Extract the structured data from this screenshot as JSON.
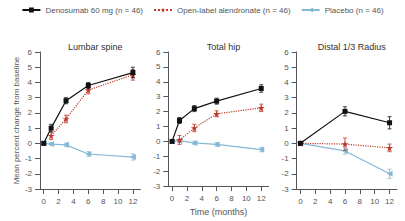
{
  "chart_data": [
    {
      "type": "line",
      "title": "Lumbar spine",
      "ylabel": "Mean percent change from baseline",
      "legend": "top",
      "xlim": [
        -0.5,
        13
      ],
      "xticks": [
        0,
        2,
        4,
        6,
        8,
        10,
        12
      ],
      "ylim": [
        -3,
        6
      ],
      "yticks": [
        -3,
        -2,
        -1,
        0,
        1,
        2,
        3,
        4,
        5,
        6
      ],
      "grid": false,
      "series": [
        {
          "name": "Denosumab 60 mg (n = 46)",
          "color": "#111111",
          "marker": "square",
          "line_style": "solid",
          "x": [
            0,
            1,
            3,
            6,
            12
          ],
          "values": [
            0,
            1.0,
            2.8,
            3.8,
            4.65
          ],
          "errors": [
            0.1,
            0.25,
            0.2,
            0.2,
            0.35
          ]
        },
        {
          "name": "Open-label alendronate (n = 46)",
          "color": "#c0392b",
          "marker": "star",
          "line_style": "dotted",
          "x": [
            1,
            3,
            6,
            12
          ],
          "values": [
            0.5,
            1.6,
            3.5,
            4.5
          ],
          "errors": [
            0.25,
            0.25,
            0.25,
            0.35
          ]
        },
        {
          "name": "Placebo (n = 46)",
          "color": "#85b8d4",
          "marker": "triangle-left",
          "line_style": "solid",
          "x": [
            0,
            1,
            3,
            6,
            12
          ],
          "values": [
            0,
            -0.05,
            -0.1,
            -0.7,
            -0.9
          ],
          "errors": [
            0.1,
            0.1,
            0.12,
            0.15,
            0.2
          ]
        }
      ]
    },
    {
      "type": "line",
      "title": "Total hip",
      "xlabel": "Time (months)",
      "xlim": [
        -0.5,
        13
      ],
      "xticks": [
        0,
        2,
        4,
        6,
        8,
        10,
        12
      ],
      "ylim": [
        -3,
        6
      ],
      "yticks": [
        -3,
        -2,
        -1,
        0,
        1,
        2,
        3,
        4,
        5,
        6
      ],
      "grid": false,
      "series": [
        {
          "name": "Denosumab 60 mg (n = 46)",
          "color": "#111111",
          "marker": "square",
          "line_style": "solid",
          "x": [
            0,
            1,
            3,
            6,
            12
          ],
          "values": [
            0,
            1.4,
            2.2,
            2.7,
            3.55
          ],
          "errors": [
            0.1,
            0.2,
            0.2,
            0.2,
            0.25
          ]
        },
        {
          "name": "Open-label alendronate (n = 46)",
          "color": "#c0392b",
          "marker": "star",
          "line_style": "dotted",
          "x": [
            1,
            3,
            6,
            12
          ],
          "values": [
            0.1,
            0.9,
            1.85,
            2.25
          ],
          "errors": [
            0.3,
            0.25,
            0.2,
            0.25
          ]
        },
        {
          "name": "Placebo (n = 46)",
          "color": "#85b8d4",
          "marker": "triangle-left",
          "line_style": "solid",
          "x": [
            0,
            1,
            3,
            6,
            12
          ],
          "values": [
            0,
            0.05,
            -0.1,
            -0.2,
            -0.55
          ],
          "errors": [
            0.1,
            0.1,
            0.12,
            0.12,
            0.15
          ]
        }
      ]
    },
    {
      "type": "line",
      "title": "Distal 1/3 Radius",
      "xlim": [
        -0.5,
        13
      ],
      "xticks": [
        0,
        2,
        4,
        6,
        8,
        10,
        12
      ],
      "ylim": [
        -3,
        6
      ],
      "yticks": [
        -3,
        -2,
        -1,
        0,
        1,
        2,
        3,
        4,
        5,
        6
      ],
      "grid": false,
      "series": [
        {
          "name": "Denosumab 60 mg (n = 46)",
          "color": "#111111",
          "marker": "square",
          "line_style": "solid",
          "x": [
            0,
            6,
            12
          ],
          "values": [
            0,
            2.1,
            1.35
          ],
          "errors": [
            0.1,
            0.3,
            0.4
          ]
        },
        {
          "name": "Open-label alendronate (n = 46)",
          "color": "#c0392b",
          "marker": "star",
          "line_style": "dotted",
          "x": [
            0,
            6,
            12
          ],
          "values": [
            0.0,
            -0.05,
            -0.3
          ],
          "errors": [
            0.05,
            0.4,
            0.25
          ]
        },
        {
          "name": "Placebo (n = 46)",
          "color": "#85b8d4",
          "marker": "triangle-left",
          "line_style": "solid",
          "x": [
            0,
            6,
            12
          ],
          "values": [
            0,
            -0.5,
            -2.0
          ],
          "errors": [
            0.1,
            0.2,
            0.3
          ]
        }
      ]
    }
  ]
}
